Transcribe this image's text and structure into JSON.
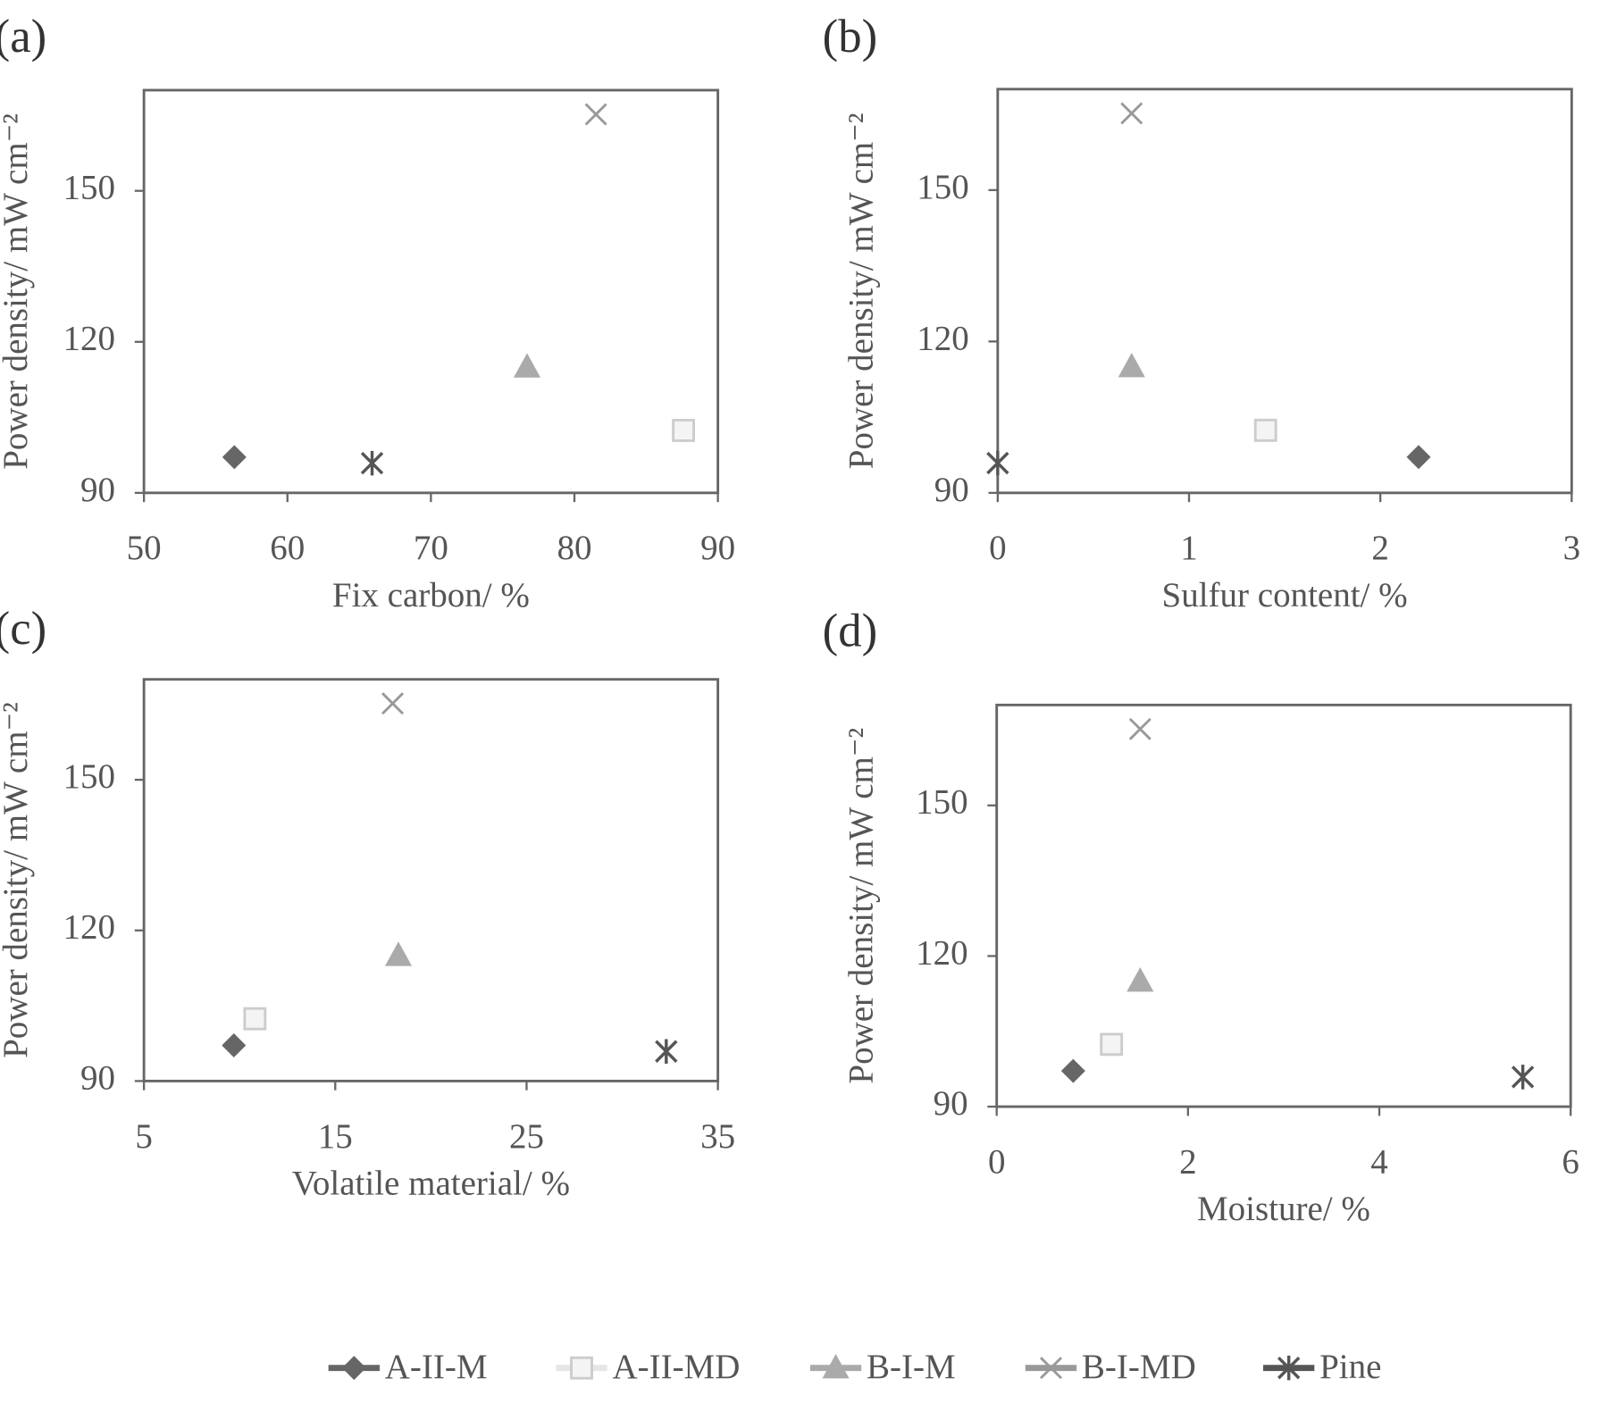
{
  "chart_data": [
    {
      "type": "scatter",
      "title": "(a)",
      "x_label": "Fix carbon/ %",
      "y_label": "Power density/ mW cm⁻²",
      "xlim": [
        50,
        90
      ],
      "xticks": [
        50,
        60,
        70,
        80,
        90
      ],
      "ylim": [
        90,
        170
      ],
      "yticks": [
        90,
        120,
        150
      ],
      "series": [
        {
          "name": "A-II-M",
          "color": "#666666",
          "marker": "diamond",
          "x": [
            56.3
          ],
          "values": [
            97.1
          ]
        },
        {
          "name": "A-II-MD",
          "color": "#dddddd",
          "marker": "square",
          "x": [
            87.6
          ],
          "values": [
            102.4
          ]
        },
        {
          "name": "B-I-M",
          "color": "#aaaaaa",
          "marker": "triangle",
          "x": [
            76.7
          ],
          "values": [
            115
          ]
        },
        {
          "name": "B-I-MD",
          "color": "#999999",
          "marker": "x",
          "x": [
            81.5
          ],
          "values": [
            165.2
          ]
        },
        {
          "name": "Pine",
          "color": "#555555",
          "marker": "star",
          "x": [
            65.9
          ],
          "values": [
            95.9
          ]
        }
      ]
    },
    {
      "type": "scatter",
      "title": "(b)",
      "x_label": "Sulfur content/ %",
      "y_label": "Power density/ mW cm⁻²",
      "xlim": [
        0,
        3
      ],
      "xticks": [
        0,
        1,
        2,
        3
      ],
      "ylim": [
        90,
        170
      ],
      "yticks": [
        90,
        120,
        150
      ],
      "series": [
        {
          "name": "A-II-M",
          "color": "#666666",
          "marker": "diamond",
          "x": [
            2.2
          ],
          "values": [
            97.1
          ]
        },
        {
          "name": "A-II-MD",
          "color": "#dddddd",
          "marker": "square",
          "x": [
            1.4
          ],
          "values": [
            102.4
          ]
        },
        {
          "name": "B-I-M",
          "color": "#aaaaaa",
          "marker": "triangle",
          "x": [
            0.7
          ],
          "values": [
            115
          ]
        },
        {
          "name": "B-I-MD",
          "color": "#999999",
          "marker": "x",
          "x": [
            0.7
          ],
          "values": [
            165.2
          ]
        },
        {
          "name": "Pine",
          "color": "#555555",
          "marker": "star",
          "x": [
            0
          ],
          "values": [
            95.9
          ]
        }
      ]
    },
    {
      "type": "scatter",
      "title": "(c)",
      "x_label": "Volatile material/ %",
      "y_label": "Power density/ mW cm⁻²",
      "xlim": [
        5,
        35
      ],
      "xticks": [
        5,
        15,
        25,
        35
      ],
      "ylim": [
        90,
        170
      ],
      "yticks": [
        90,
        120,
        150
      ],
      "series": [
        {
          "name": "A-II-M",
          "color": "#666666",
          "marker": "diamond",
          "x": [
            9.7
          ],
          "values": [
            97.1
          ]
        },
        {
          "name": "A-II-MD",
          "color": "#dddddd",
          "marker": "square",
          "x": [
            10.8
          ],
          "values": [
            102.4
          ]
        },
        {
          "name": "B-I-M",
          "color": "#aaaaaa",
          "marker": "triangle",
          "x": [
            18.3
          ],
          "values": [
            115
          ]
        },
        {
          "name": "B-I-MD",
          "color": "#999999",
          "marker": "x",
          "x": [
            18
          ],
          "values": [
            165.2
          ]
        },
        {
          "name": "Pine",
          "color": "#555555",
          "marker": "star",
          "x": [
            32.3
          ],
          "values": [
            95.9
          ]
        }
      ]
    },
    {
      "type": "scatter",
      "title": "(d)",
      "x_label": "Moisture/ %",
      "y_label": "Power density/ mW cm⁻²",
      "xlim": [
        0,
        6
      ],
      "xticks": [
        0,
        2,
        4,
        6
      ],
      "ylim": [
        90,
        170
      ],
      "yticks": [
        90,
        120,
        150
      ],
      "series": [
        {
          "name": "A-II-M",
          "color": "#666666",
          "marker": "diamond",
          "x": [
            0.8
          ],
          "values": [
            97.1
          ]
        },
        {
          "name": "A-II-MD",
          "color": "#dddddd",
          "marker": "square",
          "x": [
            1.2
          ],
          "values": [
            102.4
          ]
        },
        {
          "name": "B-I-M",
          "color": "#aaaaaa",
          "marker": "triangle",
          "x": [
            1.5
          ],
          "values": [
            115
          ]
        },
        {
          "name": "B-I-MD",
          "color": "#999999",
          "marker": "x",
          "x": [
            1.5
          ],
          "values": [
            165.2
          ]
        },
        {
          "name": "Pine",
          "color": "#555555",
          "marker": "star",
          "x": [
            5.5
          ],
          "values": [
            95.9
          ]
        }
      ]
    }
  ]
}
